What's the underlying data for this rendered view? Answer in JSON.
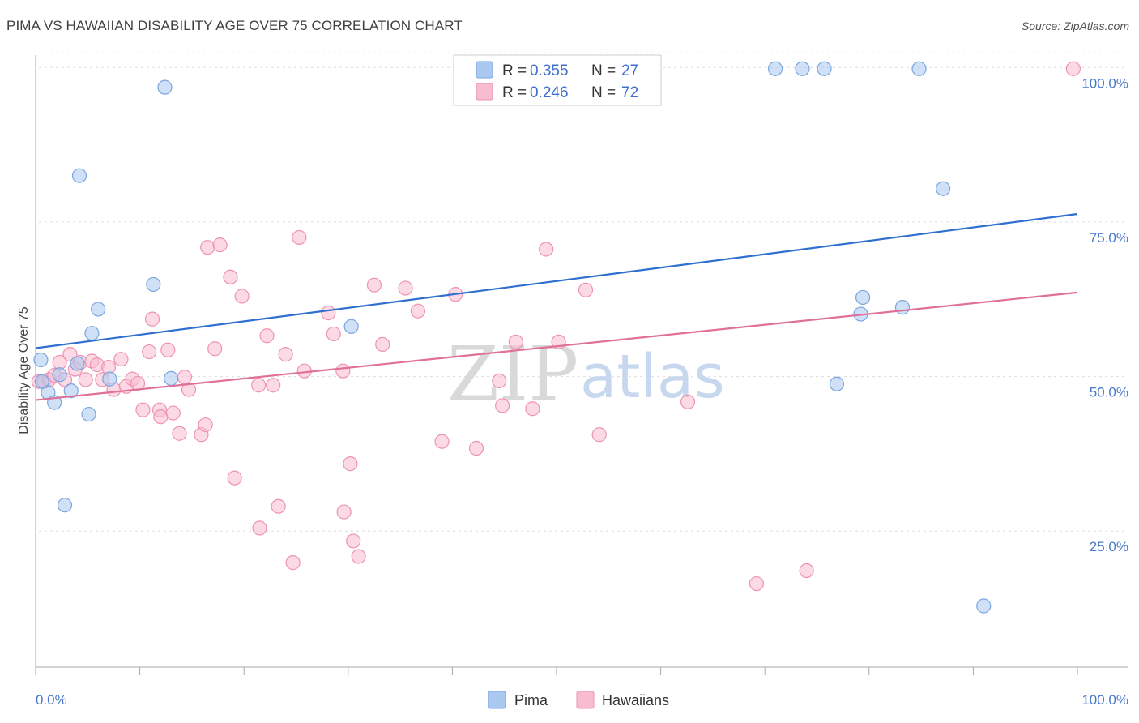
{
  "header": {
    "title": "PIMA VS HAWAIIAN DISABILITY AGE OVER 75 CORRELATION CHART",
    "source": "Source: ZipAtlas.com"
  },
  "watermark": {
    "zip": "ZIP",
    "atlas": "atlas"
  },
  "legend": {
    "rows": [
      {
        "r_label": "R = ",
        "r_value": "0.355",
        "n_label": "N = ",
        "n_value": "27"
      },
      {
        "r_label": "R = ",
        "r_value": "0.246",
        "n_label": "N = ",
        "n_value": "72"
      }
    ],
    "bottom": [
      "Pima",
      "Hawaiians"
    ]
  },
  "colors": {
    "pima_fill": "#aac8f0",
    "pima_stroke": "#7aa6e0",
    "pima_line": "#2f6fd0",
    "haw_fill": "#f7bcd0",
    "haw_stroke": "#ee93b3",
    "haw_line": "#e0709a",
    "grid": "#dddddd",
    "axis": "#aaaaaa"
  },
  "chart_data": {
    "type": "scatter",
    "title": "PIMA VS HAWAIIAN DISABILITY AGE OVER 75 CORRELATION CHART",
    "xlabel": "",
    "ylabel": "Disability Age Over 75",
    "xlim": [
      0,
      100
    ],
    "ylim": [
      3,
      102
    ],
    "x_tick_labels": [
      "0.0%",
      "100.0%"
    ],
    "y_ticks": [
      25,
      50,
      75,
      100
    ],
    "y_tick_labels": [
      "25.0%",
      "50.0%",
      "75.0%",
      "100.0%"
    ],
    "grid": true,
    "series": [
      {
        "name": "Pima",
        "r": 0.355,
        "n": 27,
        "trend": {
          "x": [
            0,
            100
          ],
          "y": [
            54.6,
            76.3
          ]
        },
        "points": [
          [
            0.5,
            52.7
          ],
          [
            0.6,
            49.2
          ],
          [
            1.2,
            47.4
          ],
          [
            1.8,
            45.8
          ],
          [
            2.3,
            50.3
          ],
          [
            2.8,
            29.2
          ],
          [
            3.4,
            47.7
          ],
          [
            4.2,
            82.5
          ],
          [
            4.0,
            52.1
          ],
          [
            5.1,
            43.9
          ],
          [
            5.4,
            57.0
          ],
          [
            6.0,
            60.9
          ],
          [
            7.1,
            49.6
          ],
          [
            11.3,
            64.9
          ],
          [
            12.4,
            96.8
          ],
          [
            13.0,
            49.7
          ],
          [
            30.3,
            58.1
          ],
          [
            71.0,
            99.8
          ],
          [
            73.6,
            99.8
          ],
          [
            75.7,
            99.8
          ],
          [
            76.9,
            48.8
          ],
          [
            79.2,
            60.1
          ],
          [
            79.4,
            62.8
          ],
          [
            83.2,
            61.2
          ],
          [
            84.8,
            99.8
          ],
          [
            87.1,
            80.4
          ],
          [
            91.0,
            12.9
          ]
        ]
      },
      {
        "name": "Hawaiians",
        "r": 0.246,
        "n": 72,
        "trend": {
          "x": [
            0,
            100
          ],
          "y": [
            46.2,
            63.6
          ]
        },
        "points": [
          [
            0.3,
            49.2
          ],
          [
            0.8,
            49.2
          ],
          [
            1.3,
            49.5
          ],
          [
            1.8,
            50.2
          ],
          [
            2.3,
            52.3
          ],
          [
            2.8,
            49.5
          ],
          [
            3.3,
            53.6
          ],
          [
            3.8,
            51.2
          ],
          [
            4.3,
            52.3
          ],
          [
            4.8,
            49.5
          ],
          [
            5.4,
            52.5
          ],
          [
            5.9,
            51.9
          ],
          [
            6.4,
            49.5
          ],
          [
            7.0,
            51.5
          ],
          [
            7.5,
            47.9
          ],
          [
            8.2,
            52.8
          ],
          [
            8.7,
            48.4
          ],
          [
            9.3,
            49.6
          ],
          [
            9.8,
            48.9
          ],
          [
            10.3,
            44.6
          ],
          [
            10.9,
            54.0
          ],
          [
            11.2,
            59.3
          ],
          [
            11.9,
            44.6
          ],
          [
            12.0,
            43.5
          ],
          [
            12.7,
            54.3
          ],
          [
            13.2,
            44.1
          ],
          [
            13.8,
            40.8
          ],
          [
            14.3,
            49.9
          ],
          [
            14.7,
            47.9
          ],
          [
            15.9,
            40.6
          ],
          [
            16.3,
            42.2
          ],
          [
            16.5,
            70.9
          ],
          [
            17.2,
            54.5
          ],
          [
            17.7,
            71.3
          ],
          [
            18.7,
            66.1
          ],
          [
            19.1,
            33.6
          ],
          [
            19.8,
            63.0
          ],
          [
            21.4,
            48.6
          ],
          [
            21.5,
            25.5
          ],
          [
            22.2,
            56.6
          ],
          [
            22.8,
            48.6
          ],
          [
            23.3,
            29.0
          ],
          [
            24.0,
            53.6
          ],
          [
            24.7,
            19.9
          ],
          [
            25.3,
            72.5
          ],
          [
            25.8,
            50.9
          ],
          [
            28.1,
            60.3
          ],
          [
            28.6,
            56.9
          ],
          [
            29.5,
            50.9
          ],
          [
            29.6,
            28.1
          ],
          [
            30.2,
            35.9
          ],
          [
            30.5,
            23.4
          ],
          [
            31.0,
            20.9
          ],
          [
            32.5,
            64.8
          ],
          [
            33.3,
            55.2
          ],
          [
            35.5,
            64.3
          ],
          [
            36.7,
            60.6
          ],
          [
            39.0,
            39.5
          ],
          [
            40.3,
            63.3
          ],
          [
            42.3,
            38.4
          ],
          [
            44.5,
            49.3
          ],
          [
            44.8,
            45.3
          ],
          [
            46.1,
            55.6
          ],
          [
            47.7,
            44.8
          ],
          [
            49.0,
            70.6
          ],
          [
            50.2,
            55.6
          ],
          [
            52.8,
            64.0
          ],
          [
            54.1,
            40.6
          ],
          [
            62.6,
            45.9
          ],
          [
            69.2,
            16.5
          ],
          [
            74.0,
            18.6
          ],
          [
            99.6,
            99.8
          ]
        ]
      }
    ]
  }
}
